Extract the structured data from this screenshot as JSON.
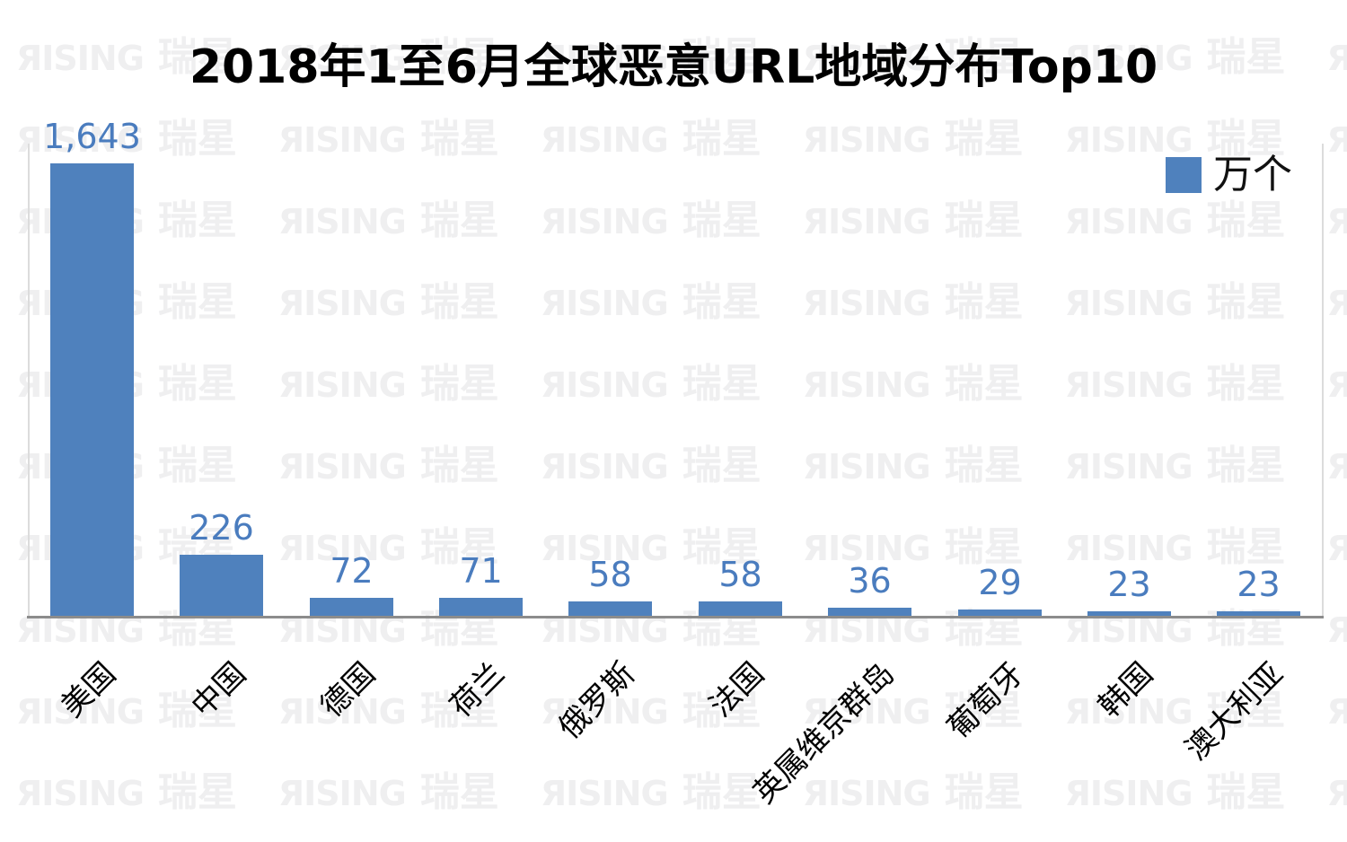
{
  "watermark": {
    "logo_en": "ЯISING",
    "logo_cn": "瑞星",
    "color": "#efeff0",
    "rows": 10,
    "units_per_row": 6
  },
  "chart_data": {
    "type": "bar",
    "title": "2018年1至6月全球恶意URL地域分布Top10",
    "categories": [
      "美国",
      "中国",
      "德国",
      "荷兰",
      "俄罗斯",
      "法国",
      "英属维京群岛",
      "葡萄牙",
      "韩国",
      "澳大利亚"
    ],
    "values": [
      1643,
      226,
      72,
      71,
      58,
      58,
      36,
      29,
      23,
      23
    ],
    "value_labels": [
      "1,643",
      "226",
      "72",
      "71",
      "58",
      "58",
      "36",
      "29",
      "23",
      "23"
    ],
    "legend_label": "万个",
    "legend_position": "top-right",
    "unit": "万个",
    "bar_color": "#4F81BD",
    "value_label_color": "#4A7CBE",
    "axis_color": "#8C8C8C",
    "xlabel": "",
    "ylabel": "",
    "ylim": [
      0,
      1643
    ],
    "grid": false,
    "x_label_rotation": -45
  }
}
